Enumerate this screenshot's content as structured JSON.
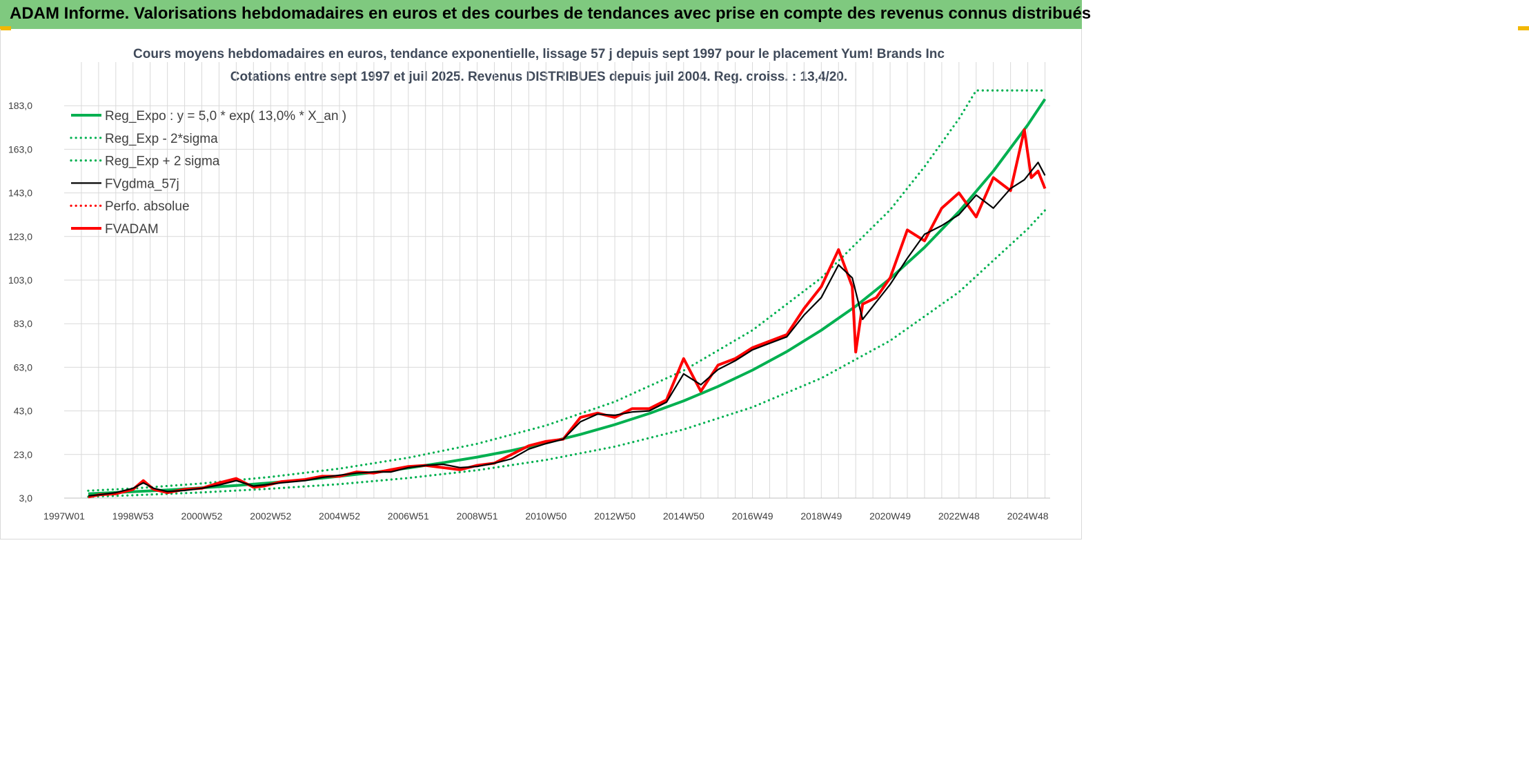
{
  "banner": {
    "title": "ADAM Informe. Valorisations hebdomadaires en euros et des courbes de tendances avec prise en compte des revenus connus distribués"
  },
  "colors": {
    "banner_bg": "#7fc97f",
    "trend": "#00b050",
    "gdma": "#000000",
    "fvadam": "#ff0000",
    "perf": "#ff0000",
    "grid": "#d9d9d9"
  },
  "chart_data": {
    "type": "line",
    "title_line1": "Cours moyens hebdomadaires en euros, tendance exponentielle, lissage 57 j depuis sept 1997 pour le placement Yum! Brands Inc",
    "title_line2": "Cotations entre sept 1997 et juil 2025. Revenus DISTRIBUES depuis juil 2004. Reg. croiss. : 13,4/20.",
    "xlabel": "",
    "ylabel": "",
    "ylim": [
      3,
      203
    ],
    "xlim": [
      1997.0,
      2025.65
    ],
    "y_ticks": [
      "3,0",
      "23,0",
      "43,0",
      "63,0",
      "83,0",
      "103,0",
      "123,0",
      "143,0",
      "163,0",
      "183,0"
    ],
    "y_tick_values": [
      3,
      23,
      43,
      63,
      83,
      103,
      123,
      143,
      163,
      183
    ],
    "x_ticks": [
      "1997W01",
      "1998W53",
      "2000W52",
      "2002W52",
      "2004W52",
      "2006W51",
      "2008W51",
      "2010W50",
      "2012W50",
      "2014W50",
      "2016W49",
      "2018W49",
      "2020W49",
      "2022W48",
      "2024W48"
    ],
    "x_tick_values": [
      1997.0,
      1999.0,
      2001.0,
      2003.0,
      2005.0,
      2007.0,
      2009.0,
      2011.0,
      2013.0,
      2015.0,
      2017.0,
      2019.0,
      2021.0,
      2023.0,
      2025.0
    ],
    "grid": true,
    "legend_position": "top-left",
    "series": [
      {
        "name": "Reg_Expo : y = 5,0 * exp( 13,0% *  X_an )",
        "style": "solid-thick",
        "color": "#00b050",
        "x": [
          1997.7,
          1999,
          2000,
          2001,
          2002,
          2003,
          2004,
          2005,
          2006,
          2007,
          2008,
          2009,
          2010,
          2011,
          2012,
          2013,
          2014,
          2015,
          2016,
          2017,
          2018,
          2019,
          2020,
          2021,
          2022,
          2023,
          2024,
          2025,
          2025.5
        ],
        "y": [
          5.0,
          5.9,
          6.7,
          7.7,
          8.8,
          10.0,
          11.4,
          13.0,
          14.8,
          16.8,
          19.2,
          21.8,
          24.8,
          28.3,
          32.2,
          36.7,
          41.8,
          47.6,
          54.2,
          61.7,
          70.2,
          80.0,
          91.0,
          103.7,
          118.0,
          134.4,
          153.0,
          174.2,
          186.0
        ]
      },
      {
        "name": "Reg_Exp - 2*sigma",
        "style": "dotted",
        "color": "#00b050",
        "x": [
          1997.7,
          1999,
          2001,
          2003,
          2005,
          2007,
          2009,
          2011,
          2013,
          2015,
          2017,
          2019,
          2021,
          2023,
          2025,
          2025.5
        ],
        "y": [
          3.6,
          4.3,
          5.6,
          7.3,
          9.4,
          12.2,
          15.8,
          20.5,
          26.6,
          34.5,
          44.7,
          58.0,
          75.2,
          97.5,
          126.5,
          135.0
        ]
      },
      {
        "name": "Reg_Exp + 2 sigma",
        "style": "dotted",
        "color": "#00b050",
        "x": [
          1997.7,
          1999,
          2001,
          2003,
          2005,
          2007,
          2009,
          2011,
          2013,
          2015,
          2017,
          2019,
          2021,
          2022,
          2023,
          2023.5,
          2025,
          2025.5
        ],
        "y": [
          6.4,
          7.4,
          9.7,
          12.7,
          16.5,
          21.5,
          27.9,
          36.3,
          47.2,
          61.5,
          80.0,
          104.0,
          135.2,
          155.0,
          177.0,
          190.0,
          190.0,
          190.0
        ]
      },
      {
        "name": "FVgdma_57j",
        "style": "solid-thin",
        "color": "#000000",
        "x": [
          1997.7,
          1998.0,
          1998.5,
          1999.0,
          1999.3,
          1999.6,
          2000.0,
          2000.5,
          2001.0,
          2001.5,
          2002.0,
          2002.5,
          2002.8,
          2003.3,
          2004.0,
          2004.5,
          2005.0,
          2005.5,
          2006.0,
          2006.5,
          2007.0,
          2007.5,
          2008.0,
          2008.5,
          2009.0,
          2009.5,
          2010.0,
          2010.5,
          2011.0,
          2011.5,
          2012.0,
          2012.5,
          2013.0,
          2013.5,
          2014.0,
          2014.5,
          2015.0,
          2015.5,
          2016.0,
          2016.5,
          2017.0,
          2017.5,
          2018.0,
          2018.5,
          2019.0,
          2019.5,
          2019.9,
          2020.2,
          2020.6,
          2021.0,
          2021.5,
          2022.0,
          2022.5,
          2023.0,
          2023.5,
          2024.0,
          2024.5,
          2024.9,
          2025.3,
          2025.5
        ],
        "y": [
          4.0,
          4.5,
          5.5,
          7.5,
          10.0,
          7.5,
          6.0,
          6.5,
          7.5,
          9.0,
          11.0,
          8.5,
          9.0,
          10.0,
          11.0,
          12.5,
          13.5,
          14.5,
          15.0,
          15.0,
          17.0,
          18.0,
          18.5,
          17.0,
          17.5,
          19.0,
          21.0,
          25.5,
          28.0,
          30.0,
          38.0,
          41.5,
          41.0,
          42.5,
          43.0,
          47.0,
          60.0,
          55.0,
          62.0,
          66.0,
          71.0,
          74.0,
          77.0,
          87.0,
          95.0,
          110.0,
          104.0,
          85.0,
          93.0,
          101.0,
          113.0,
          124.0,
          128.0,
          133.0,
          142.0,
          136.0,
          145.0,
          149.0,
          157.0,
          151.0
        ]
      },
      {
        "name": "Perfo. absolue",
        "style": "dotted",
        "color": "#ff0000",
        "x": [],
        "y": []
      },
      {
        "name": "FVADAM",
        "style": "solid-thick",
        "color": "#ff0000",
        "x": [
          1997.7,
          1998.0,
          1998.5,
          1999.0,
          1999.3,
          1999.6,
          2000.0,
          2000.5,
          2001.0,
          2001.5,
          2002.0,
          2002.5,
          2002.8,
          2003.3,
          2004.0,
          2004.5,
          2005.0,
          2005.5,
          2006.0,
          2006.5,
          2007.0,
          2007.5,
          2008.0,
          2008.5,
          2009.0,
          2009.5,
          2010.0,
          2010.5,
          2011.0,
          2011.5,
          2012.0,
          2012.5,
          2013.0,
          2013.5,
          2014.0,
          2014.5,
          2015.0,
          2015.5,
          2016.0,
          2016.5,
          2017.0,
          2017.5,
          2018.0,
          2018.5,
          2019.0,
          2019.5,
          2019.9,
          2020.0,
          2020.2,
          2020.6,
          2021.0,
          2021.5,
          2022.0,
          2022.5,
          2023.0,
          2023.5,
          2024.0,
          2024.5,
          2024.9,
          2025.1,
          2025.3,
          2025.5
        ],
        "y": [
          3.5,
          4.5,
          5.0,
          7.0,
          11.0,
          7.0,
          5.5,
          7.0,
          7.5,
          10.0,
          12.0,
          8.0,
          8.5,
          10.5,
          11.5,
          13.0,
          13.0,
          15.0,
          14.5,
          16.0,
          17.5,
          18.0,
          17.0,
          16.0,
          18.0,
          19.0,
          23.0,
          27.0,
          29.0,
          30.0,
          40.0,
          42.0,
          40.0,
          44.0,
          44.0,
          48.0,
          67.0,
          52.0,
          64.0,
          67.0,
          72.0,
          75.0,
          78.0,
          90.0,
          100.0,
          117.0,
          100.0,
          70.0,
          92.0,
          95.0,
          104.0,
          126.0,
          121.0,
          136.0,
          143.0,
          132.0,
          150.0,
          144.0,
          172.0,
          150.0,
          153.0,
          145.0
        ]
      }
    ]
  }
}
